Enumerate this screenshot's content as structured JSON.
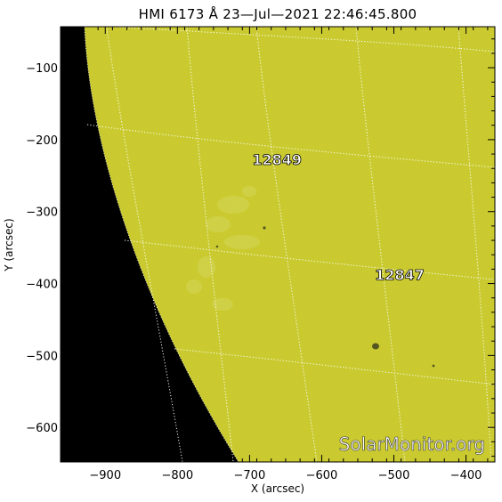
{
  "title": "HMI 6173 Å 23—Jul—2021  22:46:45.800",
  "x_axis": {
    "label": "X (arcsec)",
    "range": [
      -962,
      -360
    ],
    "ticks": [
      {
        "value": -900,
        "label": "−900"
      },
      {
        "value": -800,
        "label": "−800"
      },
      {
        "value": -700,
        "label": "−700"
      },
      {
        "value": -600,
        "label": "−600"
      },
      {
        "value": -500,
        "label": "−500"
      },
      {
        "value": -400,
        "label": "−400"
      }
    ]
  },
  "y_axis": {
    "label": "Y (arcsec)",
    "range": [
      -648,
      -43
    ],
    "ticks": [
      {
        "value": -100,
        "label": "−100"
      },
      {
        "value": -200,
        "label": "−200"
      },
      {
        "value": -300,
        "label": "−300"
      },
      {
        "value": -400,
        "label": "−400"
      },
      {
        "value": -500,
        "label": "−500"
      },
      {
        "value": -600,
        "label": "−600"
      }
    ]
  },
  "regions": [
    {
      "number": "12849",
      "x": -662,
      "y": -235
    },
    {
      "number": "12847",
      "x": -492,
      "y": -395
    }
  ],
  "watermark": "SolarMonitor.org",
  "colors": {
    "disk": "#cbcb2c",
    "space": "#000000",
    "grid": "#ffffff"
  }
}
